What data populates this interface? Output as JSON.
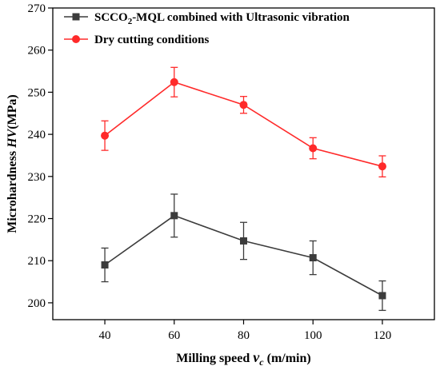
{
  "chart_data": {
    "type": "line",
    "xlabel": {
      "prefix": "Milling speed ",
      "symbol": "v",
      "subscript": "c",
      "suffix": " (m/min)"
    },
    "ylabel": {
      "prefix": "Microhardness ",
      "symbol": "HV",
      "suffix": "(MPa)"
    },
    "x": [
      40,
      60,
      80,
      100,
      120
    ],
    "xticks": [
      40,
      60,
      80,
      100,
      120
    ],
    "xlim": [
      25,
      135
    ],
    "ylim": [
      196,
      270
    ],
    "yticks": [
      200,
      210,
      220,
      230,
      240,
      250,
      260,
      270
    ],
    "grid": false,
    "legend_position": "top-left",
    "series": [
      {
        "label": {
          "prefix": "SCCO",
          "subscript": "2",
          "suffix": "-MQL combined with Ultrasonic vibration"
        },
        "color": "#3c3c3c",
        "marker": "square",
        "values": [
          209.0,
          220.7,
          214.7,
          210.7,
          201.7
        ],
        "errors": [
          4.0,
          5.1,
          4.4,
          4.0,
          3.5
        ]
      },
      {
        "label": {
          "prefix": "Dry cutting conditions"
        },
        "color": "#ff2a2a",
        "marker": "circle",
        "values": [
          239.7,
          252.4,
          247.0,
          236.7,
          232.4
        ],
        "errors": [
          3.5,
          3.5,
          2.0,
          2.5,
          2.5
        ]
      }
    ]
  }
}
